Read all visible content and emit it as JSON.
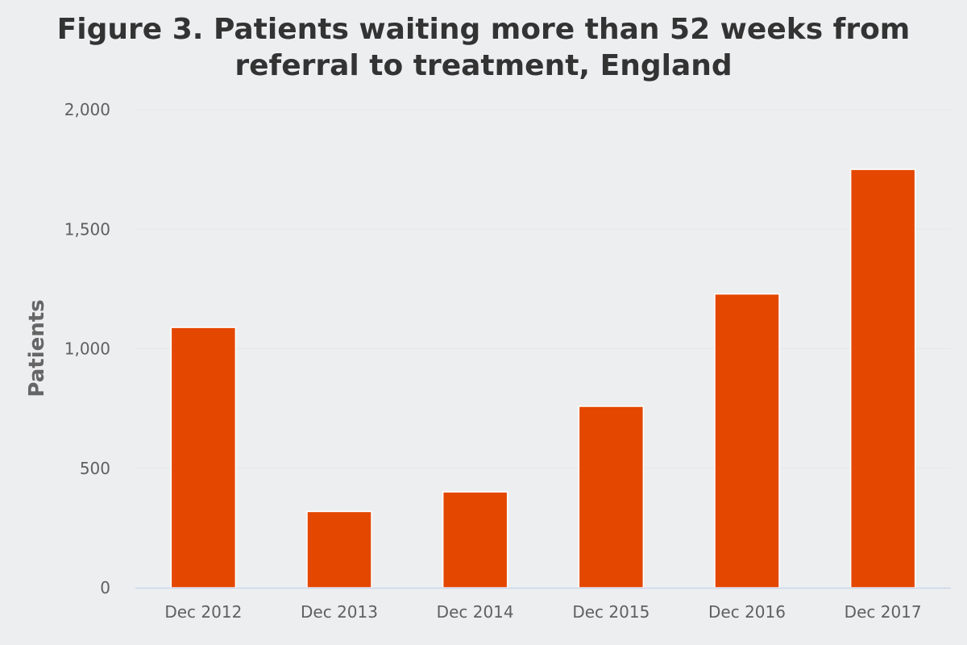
{
  "chart_data": {
    "type": "bar",
    "title_lines": [
      "Figure 3. Patients waiting more than 52 weeks from",
      "referral to treatment, England"
    ],
    "xlabel": "",
    "ylabel": "Patients",
    "categories": [
      "Dec 2012",
      "Dec 2013",
      "Dec 2014",
      "Dec 2015",
      "Dec 2016",
      "Dec 2017"
    ],
    "values": [
      1089,
      319,
      401,
      759,
      1229,
      1750
    ],
    "ylim": [
      0,
      2000
    ],
    "yticks": [
      0,
      500,
      1000,
      1500,
      2000
    ],
    "ytick_labels": [
      "0",
      "500",
      "1,000",
      "1,500",
      "2,000"
    ],
    "grid": true,
    "legend": "none",
    "bar_color": "#e44700",
    "grid_color": "#e6e6e6",
    "axis_color": "#ccd6eb"
  }
}
